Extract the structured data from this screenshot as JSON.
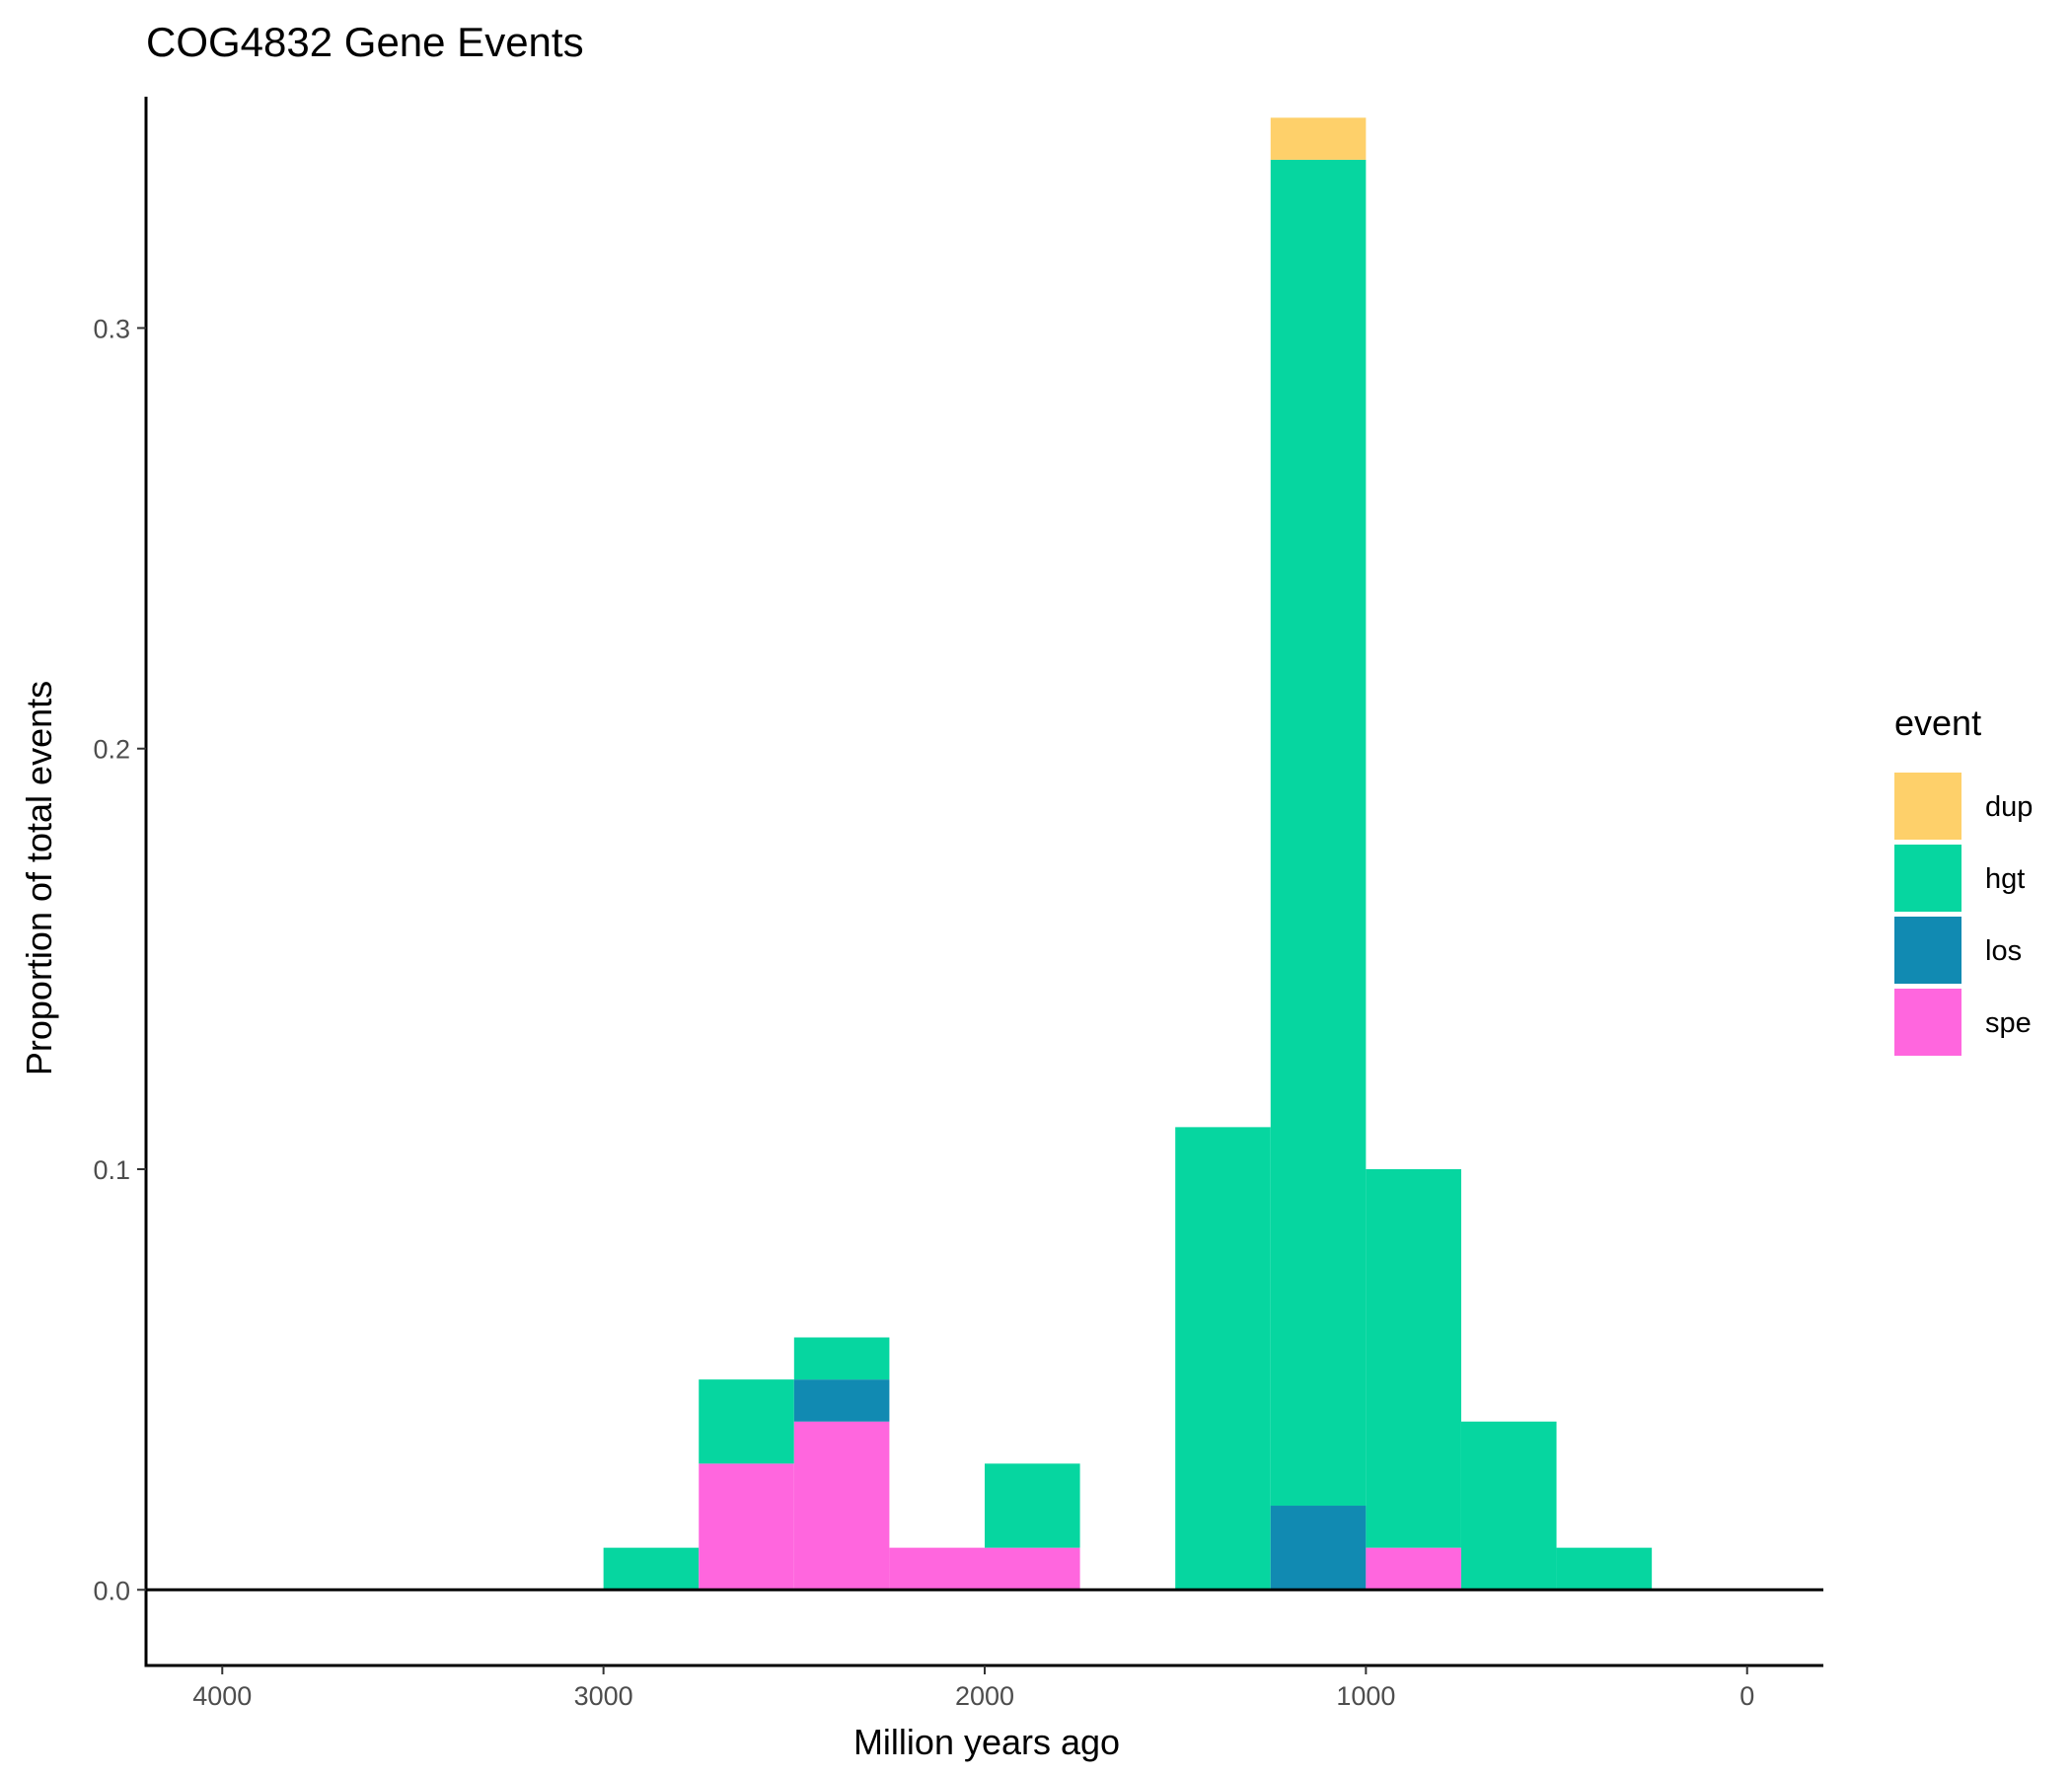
{
  "chart_data": {
    "type": "bar",
    "stacked": true,
    "title": "COG4832 Gene Events",
    "xlabel": "Million years ago",
    "ylabel": "Proportion of total events",
    "x_reversed": true,
    "xlim": [
      4200,
      -200
    ],
    "ylim": [
      -0.018,
      0.355
    ],
    "x_ticks": [
      4000,
      3000,
      2000,
      1000,
      0
    ],
    "x_tick_labels": [
      "4000",
      "3000",
      "2000",
      "1000",
      "0"
    ],
    "y_ticks": [
      0,
      0.1,
      0.2,
      0.3
    ],
    "y_tick_labels": [
      "0.0",
      "0.1",
      "0.2",
      "0.3"
    ],
    "bin_width": 250,
    "bin_centers": [
      2875,
      2625,
      2375,
      2125,
      1875,
      1375,
      1125,
      875,
      625,
      375
    ],
    "series": [
      {
        "name": "dup",
        "color": "#FED06A",
        "values": [
          0,
          0,
          0,
          0,
          0,
          0,
          0.01,
          0,
          0,
          0
        ]
      },
      {
        "name": "hgt",
        "color": "#06D6A0",
        "values": [
          0.01,
          0.02,
          0.01,
          0,
          0.02,
          0.11,
          0.32,
          0.09,
          0.04,
          0.01
        ]
      },
      {
        "name": "los",
        "color": "#118AB2",
        "values": [
          0,
          0,
          0.01,
          0,
          0,
          0,
          0.02,
          0,
          0,
          0
        ]
      },
      {
        "name": "spe",
        "color": "#FF66DE",
        "values": [
          0,
          0.03,
          0.04,
          0.01,
          0.01,
          0,
          0,
          0.01,
          0,
          0
        ]
      }
    ],
    "legend": {
      "title": "event",
      "position": "right"
    },
    "grid": false,
    "hline_at": 0
  }
}
